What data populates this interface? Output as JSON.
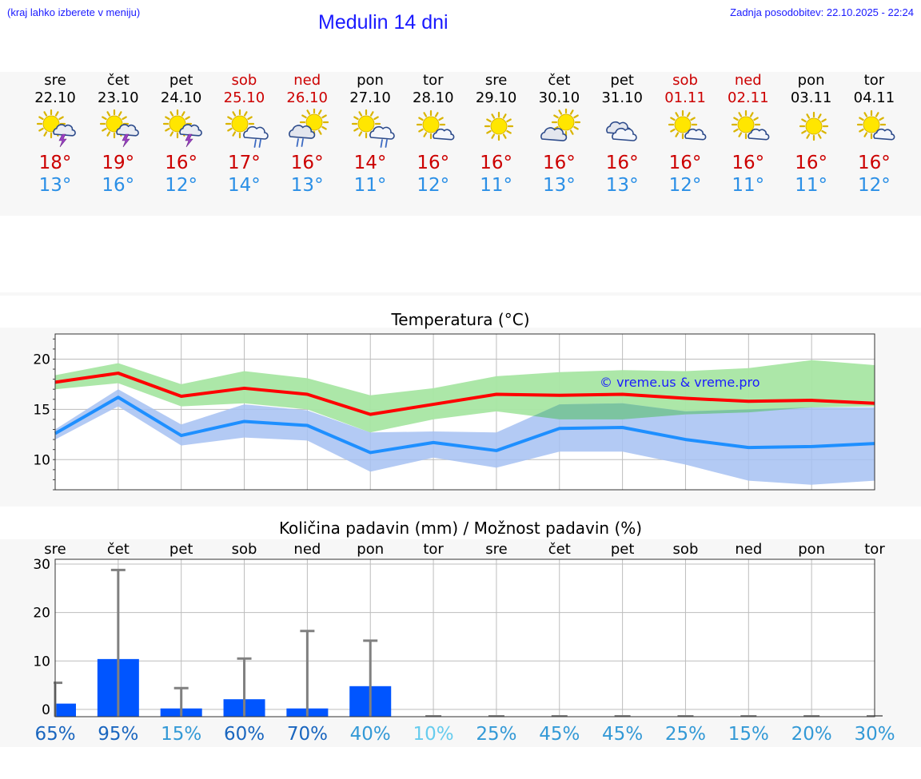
{
  "header": {
    "hint": "(kraj lahko izberete v meniju)",
    "title": "Medulin 14 dni",
    "updated": "Zadnja posodobitev: 22.10.2025 - 22:24"
  },
  "colors": {
    "link_blue": "#1a1aff",
    "weekend_red": "#cc0000",
    "max_line": "#ff0000",
    "min_line": "#1e8fff",
    "max_band": "#a8e6a3",
    "min_band": "#a6c1f2",
    "overlap_band": "#7cc4a0",
    "precip_bar": "#0055ff"
  },
  "days": [
    {
      "name": "sre",
      "date": "22.10",
      "weekend": false,
      "icon": "sun-cloud-thunder-icon",
      "tmax": "18°",
      "tmin": "13°"
    },
    {
      "name": "čet",
      "date": "23.10",
      "weekend": false,
      "icon": "sun-cloud-thunder-icon",
      "tmax": "19°",
      "tmin": "16°"
    },
    {
      "name": "pet",
      "date": "24.10",
      "weekend": false,
      "icon": "sun-cloud-thunder-icon",
      "tmax": "16°",
      "tmin": "12°"
    },
    {
      "name": "sob",
      "date": "25.10",
      "weekend": true,
      "icon": "sun-cloud-rain-icon",
      "tmax": "17°",
      "tmin": "14°"
    },
    {
      "name": "ned",
      "date": "26.10",
      "weekend": true,
      "icon": "cloud-sun-rain-icon",
      "tmax": "16°",
      "tmin": "13°"
    },
    {
      "name": "pon",
      "date": "27.10",
      "weekend": false,
      "icon": "sun-cloud-rain-icon",
      "tmax": "14°",
      "tmin": "11°"
    },
    {
      "name": "tor",
      "date": "28.10",
      "weekend": false,
      "icon": "sun-small-cloud-icon",
      "tmax": "16°",
      "tmin": "12°"
    },
    {
      "name": "sre",
      "date": "29.10",
      "weekend": false,
      "icon": "sun-icon",
      "tmax": "16°",
      "tmin": "11°"
    },
    {
      "name": "čet",
      "date": "30.10",
      "weekend": false,
      "icon": "cloud-sun-icon",
      "tmax": "16°",
      "tmin": "13°"
    },
    {
      "name": "pet",
      "date": "31.10",
      "weekend": false,
      "icon": "cloudy-icon",
      "tmax": "16°",
      "tmin": "13°"
    },
    {
      "name": "sob",
      "date": "01.11",
      "weekend": true,
      "icon": "sun-small-cloud-icon",
      "tmax": "16°",
      "tmin": "12°"
    },
    {
      "name": "ned",
      "date": "02.11",
      "weekend": true,
      "icon": "sun-small-cloud-icon",
      "tmax": "16°",
      "tmin": "11°"
    },
    {
      "name": "pon",
      "date": "03.11",
      "weekend": false,
      "icon": "sun-icon",
      "tmax": "16°",
      "tmin": "11°"
    },
    {
      "name": "tor",
      "date": "04.11",
      "weekend": false,
      "icon": "sun-small-cloud-icon",
      "tmax": "16°",
      "tmin": "12°"
    }
  ],
  "chart_data": [
    {
      "type": "line",
      "title": "Temperatura (°C)",
      "watermark": "© vreme.us & vreme.pro",
      "yticks": [
        10,
        15,
        20
      ],
      "ylim": [
        7,
        22.5
      ],
      "grid": true,
      "x": [
        "sre",
        "čet",
        "pet",
        "sob",
        "ned",
        "pon",
        "tor",
        "sre",
        "čet",
        "pet",
        "sob",
        "ned",
        "pon",
        "tor"
      ],
      "series": [
        {
          "role": "max",
          "values": [
            17.7,
            18.6,
            16.3,
            17.1,
            16.5,
            14.5,
            15.5,
            16.5,
            16.4,
            16.5,
            16.1,
            15.8,
            15.9,
            15.6
          ],
          "band_low": [
            17.0,
            17.6,
            15.3,
            15.6,
            15.0,
            12.7,
            14.0,
            14.8,
            14.0,
            14.0,
            14.5,
            14.7,
            15.2,
            15.3
          ],
          "band_high": [
            18.4,
            19.6,
            17.5,
            18.8,
            18.1,
            16.4,
            17.1,
            18.3,
            18.7,
            18.9,
            18.8,
            19.1,
            19.9,
            19.4
          ]
        },
        {
          "role": "min",
          "values": [
            12.6,
            16.2,
            12.4,
            13.8,
            13.4,
            10.7,
            11.7,
            10.9,
            13.1,
            13.2,
            12.0,
            11.2,
            11.3,
            11.6
          ],
          "band_low": [
            12.0,
            15.3,
            11.4,
            12.2,
            11.9,
            8.8,
            10.2,
            9.2,
            10.8,
            10.8,
            9.5,
            7.9,
            7.5,
            7.9
          ],
          "band_high": [
            13.0,
            17.0,
            13.5,
            15.5,
            14.9,
            12.7,
            12.8,
            12.7,
            15.5,
            15.6,
            14.8,
            15.0,
            15.2,
            15.2
          ]
        }
      ]
    },
    {
      "type": "bar",
      "title": "Količina padavin (mm) / Možnost padavin (%)",
      "categories": [
        "sre",
        "čet",
        "pet",
        "sob",
        "ned",
        "pon",
        "tor",
        "sre",
        "čet",
        "pet",
        "sob",
        "ned",
        "pon",
        "tor"
      ],
      "yticks": [
        0,
        10,
        20,
        30
      ],
      "ylim": [
        -1.5,
        31
      ],
      "grid": true,
      "values": [
        1.2,
        10.4,
        0.2,
        2.1,
        0.2,
        4.8,
        0,
        0,
        0,
        0,
        0,
        0,
        0,
        0
      ],
      "max_values": [
        5.5,
        28.8,
        4.4,
        10.5,
        16.2,
        14.2,
        0,
        0,
        0,
        0,
        0,
        0,
        0,
        0
      ],
      "probability": [
        "65%",
        "95%",
        "15%",
        "60%",
        "70%",
        "40%",
        "10%",
        "25%",
        "45%",
        "45%",
        "25%",
        "15%",
        "20%",
        "30%"
      ],
      "probability_colors": [
        "#1a66bf",
        "#1a66bf",
        "#3399d6",
        "#1a66bf",
        "#1a66bf",
        "#3399d6",
        "#66ccee",
        "#3399d6",
        "#3399d6",
        "#3399d6",
        "#3399d6",
        "#3399d6",
        "#3399d6",
        "#3399d6"
      ]
    }
  ]
}
